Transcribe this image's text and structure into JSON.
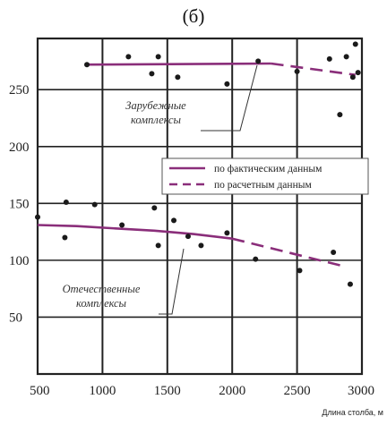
{
  "chart_data": {
    "type": "scatter",
    "panel_label": "(б)",
    "xlabel": "Длина столба, м",
    "ylabel": "",
    "xlim": [
      500,
      3000
    ],
    "ylim": [
      0,
      295
    ],
    "xticks": [
      500,
      1000,
      1500,
      2000,
      2500,
      3000
    ],
    "yticks": [
      50,
      100,
      150,
      200,
      250
    ],
    "grid": true,
    "legend_position": "center-right",
    "legend": [
      {
        "label": "по фактическим данным",
        "style": "solid"
      },
      {
        "label": "по расчетным данным",
        "style": "dashed"
      }
    ],
    "annotations": [
      {
        "text_lines": [
          "Зарубежные",
          "комплексы"
        ],
        "series": "foreign"
      },
      {
        "text_lines": [
          "Отечественные",
          "комплексы"
        ],
        "series": "domestic"
      }
    ],
    "series": [
      {
        "key": "foreign",
        "points_x": [
          880,
          1200,
          1380,
          1430,
          1580,
          1960,
          2200,
          2500,
          2750,
          2830,
          2880,
          2930,
          2950,
          2970
        ],
        "points_y": [
          272,
          279,
          264,
          279,
          261,
          255,
          275,
          266,
          277,
          228,
          279,
          261,
          290,
          265
        ],
        "fit_actual_x": [
          880,
          2300
        ],
        "fit_actual_y": [
          272,
          273
        ],
        "fit_calc_x": [
          2300,
          2950
        ],
        "fit_calc_y": [
          273,
          263
        ]
      },
      {
        "key": "domestic",
        "points_x": [
          500,
          710,
          720,
          940,
          1150,
          1400,
          1430,
          1550,
          1660,
          1760,
          1960,
          2180,
          2520,
          2780,
          2910
        ],
        "points_y": [
          138,
          120,
          151,
          149,
          131,
          146,
          113,
          135,
          121,
          113,
          124,
          101,
          91,
          107,
          79
        ],
        "fit_actual_x": [
          500,
          800,
          1100,
          1400,
          1700,
          2000
        ],
        "fit_actual_y": [
          131,
          130,
          128,
          126,
          123,
          119
        ],
        "fit_calc_x": [
          2000,
          2850
        ],
        "fit_calc_y": [
          119,
          95
        ]
      }
    ],
    "colors": {
      "fit": "#8a2e7a",
      "points": "#1a1a1a",
      "grid": "#222222"
    }
  }
}
